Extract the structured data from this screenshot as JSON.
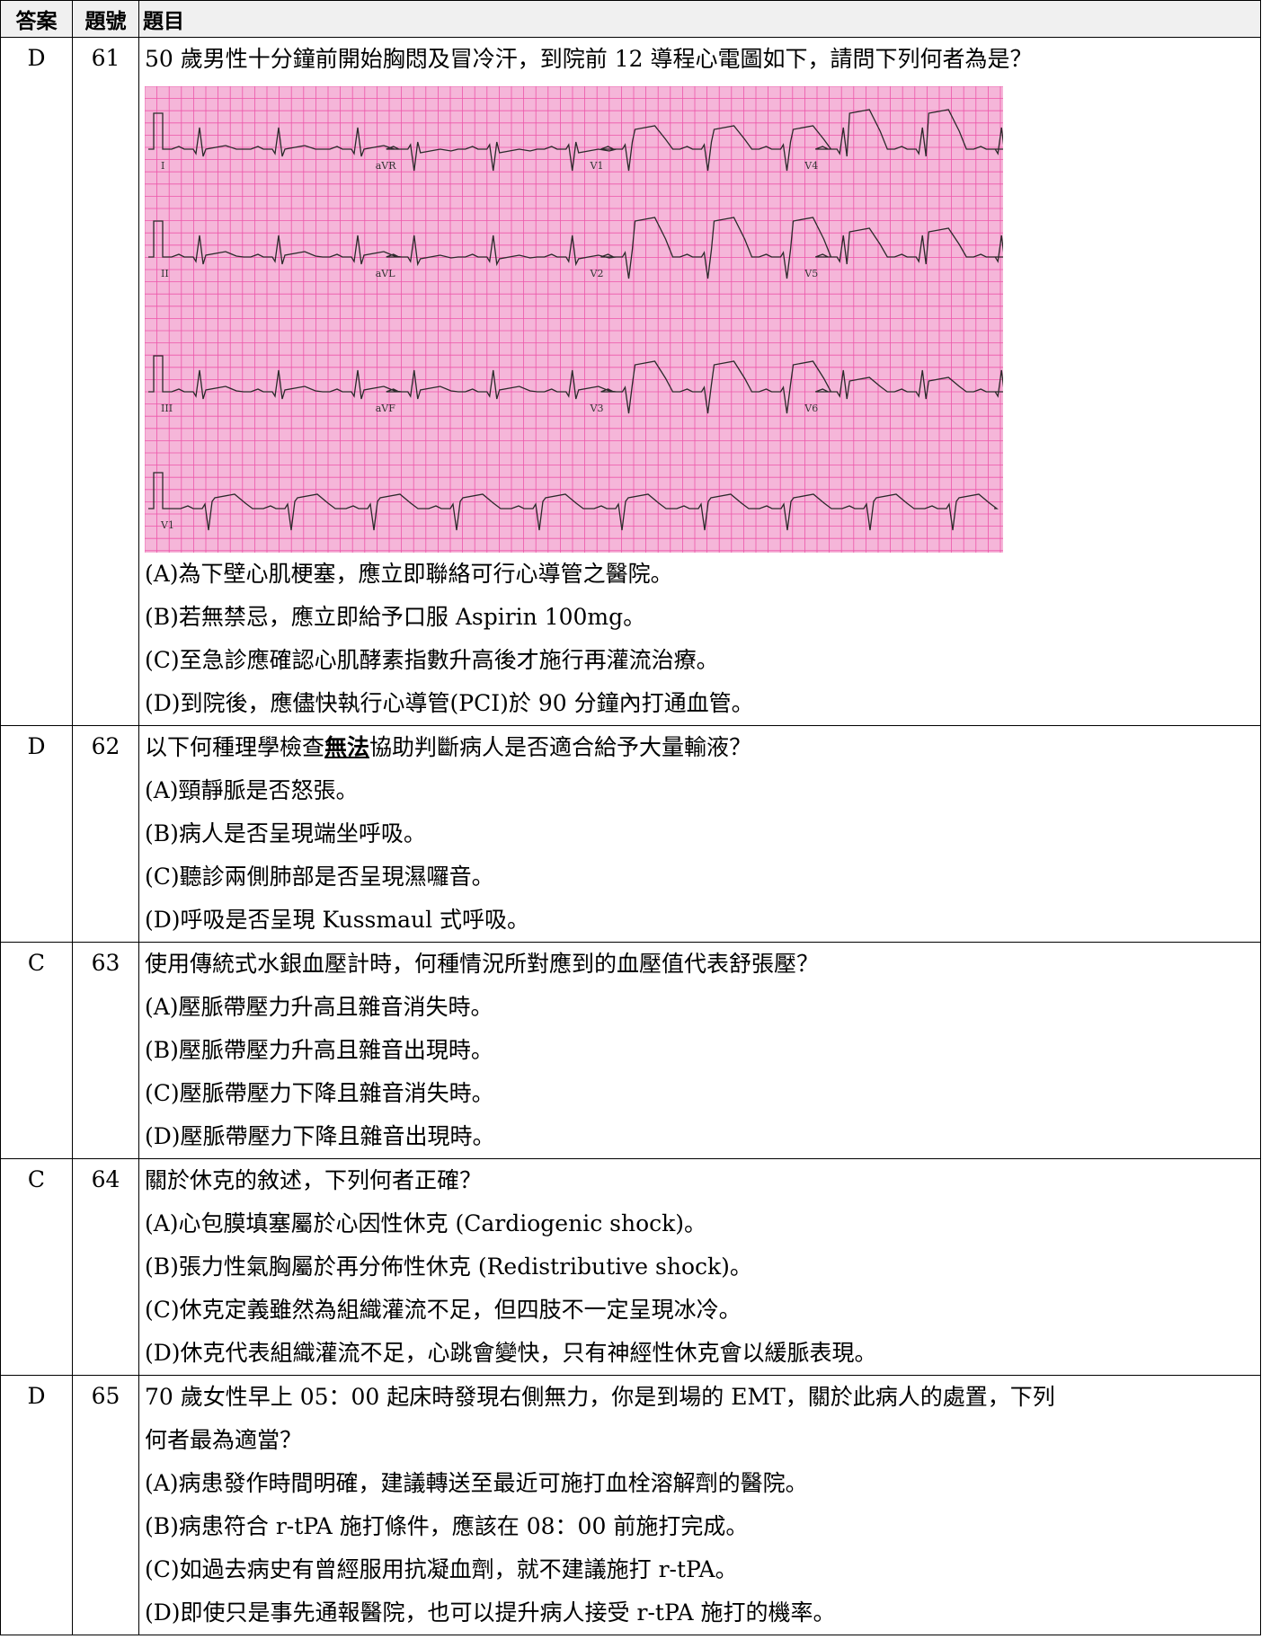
{
  "header": {
    "answer": "答案",
    "number": "題號",
    "question": "題目"
  },
  "questions": [
    {
      "answer": "D",
      "number": "61",
      "stem": "50 歲男性十分鐘前開始胸悶及冒冷汗，到院前 12 導程心電圖如下，請問下列何者為是？",
      "ecg": {
        "leads": [
          "I",
          "aVR",
          "V1",
          "V4",
          "II",
          "aVL",
          "V2",
          "V5",
          "III",
          "aVF",
          "V3",
          "V6",
          "V1"
        ]
      },
      "options": [
        "(A)為下壁心肌梗塞，應立即聯絡可行心導管之醫院。",
        "(B)若無禁忌，應立即給予口服 Aspirin 100mg。",
        "(C)至急診應確認心肌酵素指數升高後才施行再灌流治療。",
        "(D)到院後，應儘快執行心導管(PCI)於 90 分鐘內打通血管。"
      ]
    },
    {
      "answer": "D",
      "number": "62",
      "stem_pre": "以下何種理學檢查",
      "stem_em": "無法",
      "stem_post": "協助判斷病人是否適合給予大量輸液？",
      "options": [
        "(A)頸靜脈是否怒張。",
        "(B)病人是否呈現端坐呼吸。",
        "(C)聽診兩側肺部是否呈現濕囉音。",
        "(D)呼吸是否呈現 Kussmaul 式呼吸。"
      ]
    },
    {
      "answer": "C",
      "number": "63",
      "stem": "使用傳統式水銀血壓計時，何種情況所對應到的血壓值代表舒張壓？",
      "options": [
        "(A)壓脈帶壓力升高且雜音消失時。",
        "(B)壓脈帶壓力升高且雜音出現時。",
        "(C)壓脈帶壓力下降且雜音消失時。",
        "(D)壓脈帶壓力下降且雜音出現時。"
      ]
    },
    {
      "answer": "C",
      "number": "64",
      "stem": "關於休克的敘述，下列何者正確？",
      "options": [
        "(A)心包膜填塞屬於心因性休克 (Cardiogenic shock)。",
        "(B)張力性氣胸屬於再分佈性休克 (Redistributive shock)。",
        "(C)休克定義雖然為組織灌流不足，但四肢不一定呈現冰冷。",
        "(D)休克代表組織灌流不足，心跳會變快，只有神經性休克會以緩脈表現。"
      ]
    },
    {
      "answer": "D",
      "number": "65",
      "stem_line1": "70 歲女性早上 05：00 起床時發現右側無力，你是到場的 EMT，關於此病人的處置，下列",
      "stem_line2": "何者最為適當？",
      "options": [
        "(A)病患發作時間明確，建議轉送至最近可施打血栓溶解劑的醫院。",
        "(B)病患符合 r-tPA 施打條件，應該在 08：00 前施打完成。",
        "(C)如過去病史有曾經服用抗凝血劑，就不建議施打 r-tPA。",
        "(D)即使只是事先通報醫院，也可以提升病人接受 r-tPA 施打的機率。"
      ]
    }
  ],
  "colors": {
    "ecg_paper": "#f5b6d9",
    "ecg_grid": "#e9369a",
    "ecg_trace": "#2a2a2a"
  }
}
